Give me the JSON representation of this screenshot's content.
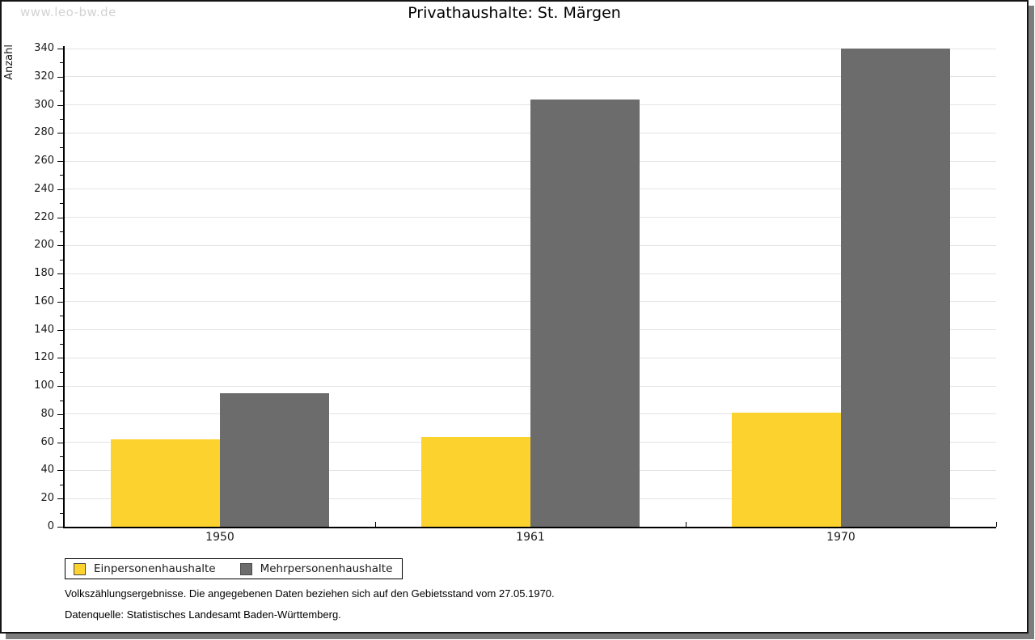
{
  "watermark": "www.leo-bw.de",
  "chart_data": {
    "type": "bar",
    "title": "Privathaushalte: St. Märgen",
    "xlabel": "",
    "ylabel": "Anzahl",
    "categories": [
      "1950",
      "1961",
      "1970"
    ],
    "series": [
      {
        "name": "Einpersonenhaushalte",
        "color": "#FCD32E",
        "values": [
          62,
          64,
          81
        ]
      },
      {
        "name": "Mehrpersonenhaushalte",
        "color": "#6C6C6C",
        "values": [
          95,
          304,
          340
        ]
      }
    ],
    "ylim": [
      0,
      340
    ],
    "ytick_step": 20,
    "yminor_step": 10,
    "grid": true,
    "legend_position": "bottom-left"
  },
  "footer": {
    "note": "Volkszählungsergebnisse. Die angegebenen Daten beziehen sich auf den Gebietsstand vom 27.05.1970.",
    "source": "Datenquelle: Statistisches Landesamt Baden-Württemberg."
  }
}
